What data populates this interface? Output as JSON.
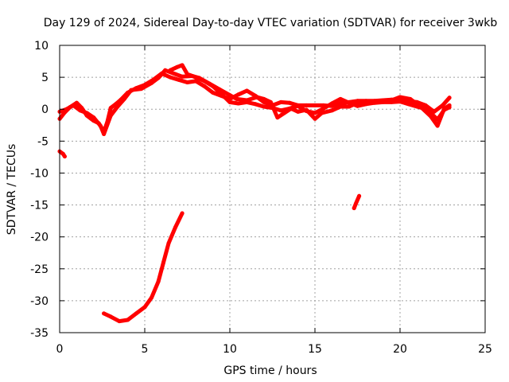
{
  "chart_data": {
    "type": "scatter",
    "title": "Day 129 of 2024, Sidereal Day-to-day VTEC variation (SDTVAR) for receiver 3wkb",
    "xlabel": "GPS time / hours",
    "ylabel": "SDTVAR / TECUs",
    "xlim": [
      0,
      25
    ],
    "ylim": [
      -35,
      10
    ],
    "xticks": [
      0,
      5,
      10,
      15,
      20,
      25
    ],
    "yticks": [
      10,
      5,
      0,
      -5,
      -10,
      -15,
      -20,
      -25,
      -30,
      -35
    ],
    "grid": true,
    "series_color": "#ff0000",
    "series": [
      {
        "name": "main-trace-a",
        "points": [
          [
            0.0,
            -1.5
          ],
          [
            0.3,
            -0.5
          ],
          [
            0.6,
            0.3
          ],
          [
            1.0,
            1.0
          ],
          [
            1.3,
            0.2
          ],
          [
            1.6,
            -1.0
          ],
          [
            2.0,
            -1.8
          ],
          [
            2.3,
            -2.2
          ],
          [
            2.6,
            -3.5
          ],
          [
            2.8,
            -2.0
          ],
          [
            3.0,
            0.2
          ],
          [
            3.3,
            0.8
          ],
          [
            3.6,
            1.5
          ],
          [
            4.0,
            2.6
          ],
          [
            4.5,
            3.3
          ],
          [
            5.0,
            3.8
          ],
          [
            5.5,
            4.6
          ],
          [
            6.0,
            5.6
          ],
          [
            6.5,
            5.0
          ],
          [
            7.0,
            4.6
          ],
          [
            7.5,
            4.2
          ],
          [
            8.0,
            4.4
          ],
          [
            8.5,
            3.6
          ],
          [
            9.0,
            2.6
          ],
          [
            9.5,
            2.1
          ],
          [
            10.0,
            1.6
          ],
          [
            10.5,
            2.3
          ],
          [
            11.0,
            2.9
          ],
          [
            11.5,
            2.1
          ],
          [
            12.0,
            1.1
          ],
          [
            12.5,
            0.6
          ],
          [
            13.0,
            1.1
          ],
          [
            13.5,
            1.0
          ],
          [
            14.0,
            0.6
          ],
          [
            14.5,
            0.6
          ],
          [
            15.0,
            0.6
          ],
          [
            15.5,
            0.6
          ],
          [
            16.0,
            0.5
          ],
          [
            16.5,
            0.9
          ],
          [
            17.0,
            1.1
          ],
          [
            17.5,
            1.3
          ],
          [
            18.0,
            1.3
          ],
          [
            18.5,
            1.3
          ],
          [
            19.0,
            1.4
          ],
          [
            19.5,
            1.5
          ],
          [
            20.0,
            1.5
          ],
          [
            20.5,
            1.3
          ],
          [
            21.0,
            1.1
          ],
          [
            21.5,
            0.6
          ],
          [
            22.0,
            -0.4
          ],
          [
            22.5,
            0.6
          ],
          [
            22.9,
            1.8
          ]
        ]
      },
      {
        "name": "main-trace-b",
        "points": [
          [
            0.0,
            -0.4
          ],
          [
            0.4,
            0.0
          ],
          [
            0.8,
            0.6
          ],
          [
            1.2,
            -0.2
          ],
          [
            1.6,
            -0.6
          ],
          [
            2.0,
            -1.3
          ],
          [
            2.4,
            -2.6
          ],
          [
            2.6,
            -3.9
          ],
          [
            3.0,
            -1.0
          ],
          [
            3.4,
            0.4
          ],
          [
            3.8,
            1.6
          ],
          [
            4.2,
            3.0
          ],
          [
            4.8,
            3.2
          ],
          [
            5.4,
            4.1
          ],
          [
            5.8,
            4.9
          ],
          [
            6.2,
            6.1
          ],
          [
            6.8,
            5.5
          ],
          [
            7.2,
            5.1
          ],
          [
            7.8,
            5.2
          ],
          [
            8.2,
            4.9
          ],
          [
            8.8,
            4.0
          ],
          [
            9.4,
            3.1
          ],
          [
            10.0,
            2.2
          ],
          [
            10.4,
            1.6
          ],
          [
            11.0,
            1.4
          ],
          [
            11.6,
            1.9
          ],
          [
            12.0,
            1.6
          ],
          [
            12.4,
            1.1
          ],
          [
            12.8,
            -1.3
          ],
          [
            13.2,
            -0.6
          ],
          [
            13.6,
            0.1
          ],
          [
            14.0,
            -0.4
          ],
          [
            14.5,
            -0.1
          ],
          [
            15.0,
            -1.5
          ],
          [
            15.4,
            -0.6
          ],
          [
            16.0,
            -0.2
          ],
          [
            16.5,
            0.4
          ],
          [
            17.0,
            0.4
          ],
          [
            17.6,
            1.1
          ],
          [
            18.2,
            1.1
          ],
          [
            18.8,
            1.1
          ],
          [
            19.4,
            1.3
          ],
          [
            20.0,
            1.9
          ],
          [
            20.6,
            1.6
          ],
          [
            21.2,
            0.4
          ],
          [
            21.8,
            -1.1
          ],
          [
            22.2,
            -2.6
          ],
          [
            22.6,
            0.1
          ],
          [
            22.9,
            0.6
          ]
        ]
      },
      {
        "name": "main-trace-c",
        "points": [
          [
            6.5,
            6.1
          ],
          [
            6.9,
            6.6
          ],
          [
            7.2,
            6.9
          ],
          [
            7.5,
            5.5
          ],
          [
            8.0,
            5.0
          ],
          [
            8.5,
            4.4
          ],
          [
            9.0,
            3.6
          ],
          [
            9.5,
            2.4
          ],
          [
            10.0,
            1.1
          ],
          [
            10.5,
            0.9
          ],
          [
            11.0,
            1.1
          ],
          [
            11.5,
            0.8
          ],
          [
            12.0,
            0.4
          ],
          [
            12.5,
            0.2
          ],
          [
            13.0,
            -0.2
          ],
          [
            13.5,
            0.1
          ],
          [
            14.0,
            0.5
          ],
          [
            14.5,
            -0.3
          ],
          [
            15.0,
            -0.6
          ],
          [
            15.5,
            0.1
          ],
          [
            16.0,
            0.9
          ],
          [
            16.5,
            1.6
          ],
          [
            17.0,
            1.0
          ],
          [
            17.5,
            0.5
          ],
          [
            18.0,
            0.8
          ],
          [
            18.5,
            1.0
          ],
          [
            19.0,
            1.1
          ],
          [
            19.5,
            1.1
          ],
          [
            20.0,
            1.2
          ],
          [
            20.5,
            0.8
          ],
          [
            21.0,
            0.4
          ],
          [
            21.4,
            0.1
          ],
          [
            21.8,
            -0.6
          ],
          [
            22.2,
            -1.6
          ],
          [
            22.6,
            -0.1
          ],
          [
            22.9,
            0.3
          ]
        ]
      },
      {
        "name": "isolated-start",
        "points": [
          [
            0.0,
            -6.6
          ],
          [
            0.2,
            -7.0
          ],
          [
            0.3,
            -7.4
          ]
        ]
      },
      {
        "name": "low-curve",
        "points": [
          [
            2.6,
            -32.0
          ],
          [
            3.0,
            -32.5
          ],
          [
            3.5,
            -33.2
          ],
          [
            4.0,
            -33.0
          ],
          [
            4.5,
            -32.0
          ],
          [
            5.0,
            -31.0
          ],
          [
            5.4,
            -29.5
          ],
          [
            5.8,
            -27.0
          ],
          [
            6.1,
            -24.0
          ],
          [
            6.4,
            -21.0
          ],
          [
            6.8,
            -18.5
          ],
          [
            7.2,
            -16.3
          ]
        ]
      },
      {
        "name": "isolated-mid",
        "points": [
          [
            17.3,
            -15.5
          ],
          [
            17.4,
            -14.8
          ],
          [
            17.6,
            -13.6
          ]
        ]
      }
    ]
  }
}
